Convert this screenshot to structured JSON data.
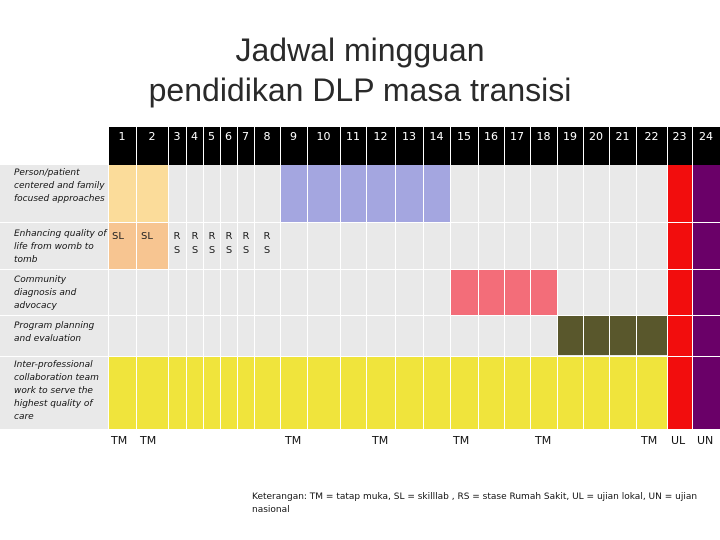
{
  "title": {
    "line1": "Jadwal mingguan",
    "line2": "pendidikan DLP masa transisi"
  },
  "weeks": [
    "1",
    "2",
    "3",
    "4",
    "5",
    "6",
    "7",
    "8",
    "9",
    "10",
    "11",
    "12",
    "13",
    "14",
    "15",
    "16",
    "17",
    "18",
    "19",
    "20",
    "21",
    "22",
    "23",
    "24"
  ],
  "rows": [
    {
      "label": "Person/patient centered and family focused approaches"
    },
    {
      "label": "Enhancing quality of life from womb to tomb"
    },
    {
      "label": "Community diagnosis and advocacy"
    },
    {
      "label": "Program planning and evaluation"
    },
    {
      "label": "Inter-professional collaboration team work to serve the highest quality of care"
    }
  ],
  "cells": {
    "sl1": "SL",
    "sl2": "SL",
    "r": "R",
    "s": "S"
  },
  "footer": {
    "tm1": "TM",
    "tm2": "TM",
    "tm3": "TM",
    "tm4": "TM",
    "tm5": "TM",
    "tm6": "TM",
    "tm7": "TM",
    "ul": "UL",
    "un": "UN"
  },
  "note": "Keterangan: TM = tatap muka, SL = skilllab , RS = stase Rumah Sakit, UL = ujian lokal, UN = ujian nasional",
  "colors": {
    "peach_light": "#fbdc9a",
    "peach": "#f7c591",
    "lavender": "#a4a6e0",
    "pink": "#f36d79",
    "olive": "#59572c",
    "yellow": "#f0e43c",
    "red": "#f20d0d",
    "purple": "#6a0068",
    "grid_bg": "#e9e9e9"
  }
}
